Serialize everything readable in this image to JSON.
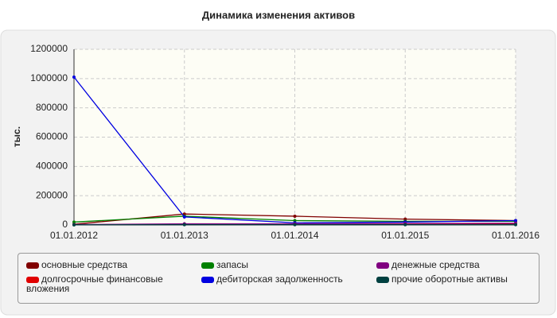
{
  "chart_data": {
    "type": "line",
    "title": "Динамика изменения активов",
    "y_label": "тыс.",
    "x": [
      "01.01.2012",
      "01.01.2013",
      "01.01.2014",
      "01.01.2015",
      "01.01.2016"
    ],
    "series": [
      {
        "name": "основные средства",
        "color": "#800000",
        "values": [
          5000,
          75000,
          60000,
          40000,
          30000
        ]
      },
      {
        "name": "долгосрочные финансовые вложения",
        "color": "#e00000",
        "values": [
          2000,
          5000,
          5000,
          5000,
          5000
        ]
      },
      {
        "name": "запасы",
        "color": "#008000",
        "values": [
          20000,
          60000,
          30000,
          25000,
          25000
        ]
      },
      {
        "name": "дебиторская задолженность",
        "color": "#0000e0",
        "values": [
          1010000,
          55000,
          15000,
          20000,
          30000
        ]
      },
      {
        "name": "денежные средства",
        "color": "#800080",
        "values": [
          3000,
          8000,
          8000,
          10000,
          12000
        ]
      },
      {
        "name": "прочие оборотные активы",
        "color": "#004040",
        "values": [
          1000,
          2000,
          2000,
          2000,
          2000
        ]
      }
    ],
    "ylim": [
      0,
      1200000
    ],
    "yticks": [
      0,
      200000,
      400000,
      600000,
      800000,
      1000000,
      1200000
    ],
    "grid": true
  }
}
